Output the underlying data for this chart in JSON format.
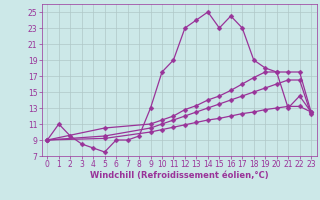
{
  "xlabel": "Windchill (Refroidissement éolien,°C)",
  "xlim": [
    -0.5,
    23.5
  ],
  "ylim": [
    7,
    26
  ],
  "yticks": [
    7,
    9,
    11,
    13,
    15,
    17,
    19,
    21,
    23,
    25
  ],
  "xticks": [
    0,
    1,
    2,
    3,
    4,
    5,
    6,
    7,
    8,
    9,
    10,
    11,
    12,
    13,
    14,
    15,
    16,
    17,
    18,
    19,
    20,
    21,
    22,
    23
  ],
  "bg_color": "#cce8e8",
  "line_color": "#993399",
  "grid_color": "#b0c8c8",
  "series1_x": [
    0,
    1,
    2,
    3,
    4,
    5,
    6,
    7,
    8,
    9,
    10,
    11,
    12,
    13,
    14,
    15,
    16,
    17,
    18,
    19,
    20,
    21,
    22,
    23
  ],
  "series1_y": [
    9,
    11,
    9.5,
    8.5,
    8,
    7.5,
    9,
    9,
    9.5,
    13,
    17.5,
    19,
    23,
    24,
    25,
    23,
    24.5,
    23,
    19,
    18,
    17.5,
    13,
    14.5,
    12.5
  ],
  "series2_x": [
    0,
    5,
    9,
    10,
    11,
    12,
    13,
    14,
    15,
    16,
    17,
    18,
    19,
    20,
    21,
    22,
    23
  ],
  "series2_y": [
    9,
    10.5,
    11.0,
    11.5,
    12.0,
    12.8,
    13.3,
    14.0,
    14.5,
    15.2,
    16.0,
    16.8,
    17.5,
    17.5,
    17.5,
    17.5,
    12.5
  ],
  "series3_x": [
    0,
    5,
    9,
    10,
    11,
    12,
    13,
    14,
    15,
    16,
    17,
    18,
    19,
    20,
    21,
    22,
    23
  ],
  "series3_y": [
    9,
    9.5,
    10.5,
    11.0,
    11.5,
    12.0,
    12.5,
    13.0,
    13.5,
    14.0,
    14.5,
    15.0,
    15.5,
    16.0,
    16.5,
    16.5,
    12.2
  ],
  "series4_x": [
    0,
    5,
    9,
    10,
    11,
    12,
    13,
    14,
    15,
    16,
    17,
    18,
    19,
    20,
    21,
    22,
    23
  ],
  "series4_y": [
    9,
    9.2,
    10.0,
    10.3,
    10.6,
    10.9,
    11.2,
    11.5,
    11.7,
    12.0,
    12.3,
    12.5,
    12.8,
    13.0,
    13.2,
    13.2,
    12.5
  ],
  "markersize": 2.5,
  "linewidth": 0.9,
  "tick_fontsize": 5.5,
  "xlabel_fontsize": 6.0
}
